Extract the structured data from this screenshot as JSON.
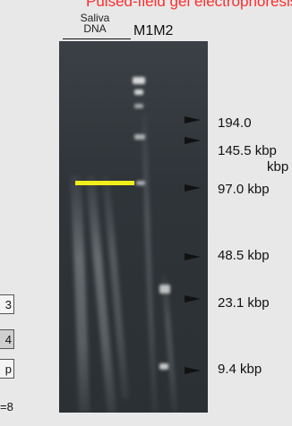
{
  "header": {
    "title": "Pulsed-field gel electrophoresis",
    "lane_label": "Saliva\nDNA",
    "marker_labels": "M1M2"
  },
  "markers": [
    {
      "label": "194.0"
    },
    {
      "label": "145.5 kbp"
    },
    {
      "label": "kbp"
    },
    {
      "label": "97.0 kbp"
    },
    {
      "label": "48.5 kbp"
    },
    {
      "label": "23.1 kbp"
    },
    {
      "label": "9.4 kbp"
    }
  ],
  "side_table": {
    "cells": [
      "3",
      "4",
      "p"
    ],
    "footer": "=8"
  },
  "colors": {
    "title": "#ff2d2d",
    "highlight": "#f2ee1a",
    "gel": "#2f3439"
  }
}
